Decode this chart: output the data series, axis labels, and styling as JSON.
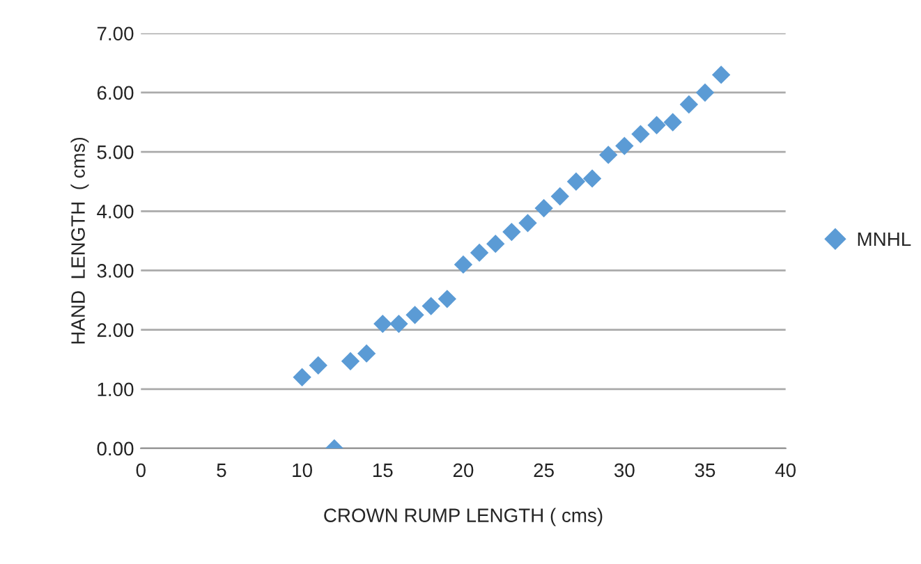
{
  "chart_data": {
    "type": "scatter",
    "xlabel": "CROWN RUMP LENGTH ( cms)",
    "ylabel": "HAND  LENGTH  ( cms)",
    "x": [
      10,
      11,
      12,
      13,
      14,
      15,
      16,
      17,
      18,
      19,
      20,
      21,
      22,
      23,
      24,
      25,
      26,
      27,
      28,
      29,
      30,
      31,
      32,
      33,
      34,
      35,
      36
    ],
    "series": [
      {
        "name": "MNHL",
        "color": "#5b9bd5",
        "values": [
          1.2,
          1.4,
          0.0,
          1.47,
          1.6,
          2.1,
          2.1,
          2.25,
          2.4,
          2.52,
          3.1,
          3.3,
          3.45,
          3.65,
          3.8,
          4.05,
          4.25,
          4.5,
          4.55,
          4.95,
          5.1,
          5.3,
          5.45,
          5.5,
          5.8,
          6.0,
          6.3
        ]
      }
    ],
    "xlim": [
      0,
      40
    ],
    "xticks": [
      0,
      5,
      10,
      15,
      20,
      25,
      30,
      35,
      40
    ],
    "ylim": [
      0,
      7
    ],
    "yticks": [
      {
        "value": 0,
        "label": "0.00"
      },
      {
        "value": 1,
        "label": "1.00"
      },
      {
        "value": 2,
        "label": "2.00"
      },
      {
        "value": 3,
        "label": "3.00"
      },
      {
        "value": 4,
        "label": "4.00"
      },
      {
        "value": 5,
        "label": "5.00"
      },
      {
        "value": 6,
        "label": "6.00"
      },
      {
        "value": 7,
        "label": "7.00"
      }
    ],
    "grid": "y",
    "legend": "right",
    "marker": "diamond"
  }
}
